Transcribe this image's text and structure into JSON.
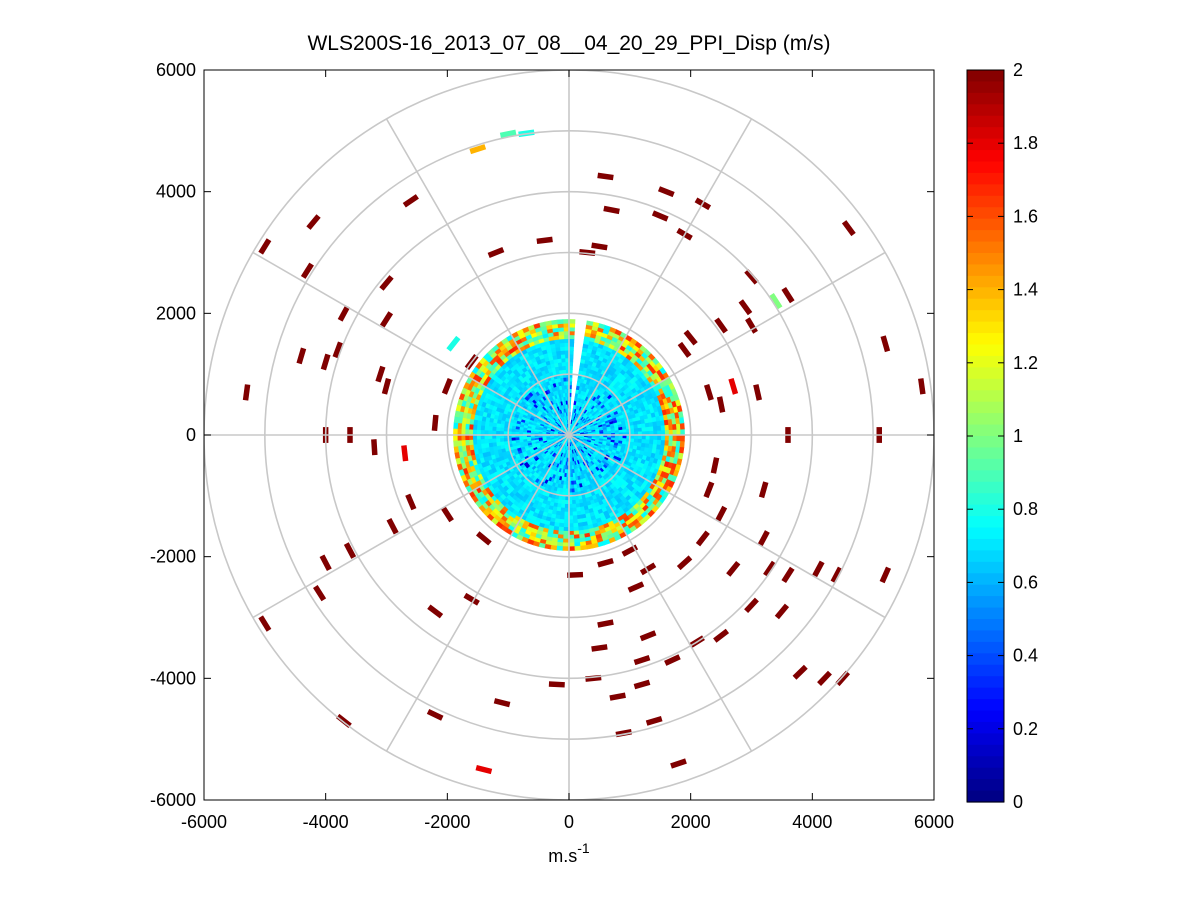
{
  "chart_data": {
    "type": "heatmap",
    "subtype": "ppi-polar-scan",
    "title": "WLS200S-16_2013_07_08__04_20_29_PPI_Disp (m/s)",
    "xlabel": "m.s",
    "xlabel_superscript": "-1",
    "ylabel": "",
    "xlim": [
      -6000,
      6000
    ],
    "ylim": [
      -6000,
      6000
    ],
    "x_ticks": [
      "-6000",
      "-4000",
      "-2000",
      "0",
      "2000",
      "4000",
      "6000"
    ],
    "y_ticks": [
      "6000",
      "4000",
      "2000",
      "0",
      "-2000",
      "-4000",
      "-6000"
    ],
    "polar_grid": {
      "ring_radii": [
        1000,
        2000,
        3000,
        4000,
        5000,
        6000
      ],
      "spoke_angles_deg": [
        0,
        30,
        60,
        90,
        120,
        150,
        180,
        210,
        240,
        270,
        300,
        330
      ]
    },
    "colorbar": {
      "range": [
        0,
        2
      ],
      "colormap": "jet",
      "tick_labels": [
        "2",
        "1.8",
        "1.6",
        "1.4",
        "1.2",
        "1",
        "0.8",
        "0.6",
        "0.4",
        "0.2",
        "0"
      ]
    },
    "central_region": {
      "radius": 1900,
      "typical_value": 0.7,
      "edge_value": 1.2,
      "gap_azimuth_deg": [
        80,
        88
      ]
    },
    "scattered_cells": [
      {
        "x": -1000,
        "y": 4950,
        "v": 0.9
      },
      {
        "x": -700,
        "y": 4960,
        "v": 0.8
      },
      {
        "x": -1500,
        "y": 4700,
        "v": 1.4
      },
      {
        "x": 600,
        "y": 4250,
        "v": 2
      },
      {
        "x": 1600,
        "y": 4000,
        "v": 2
      },
      {
        "x": 2200,
        "y": 3800,
        "v": 2
      },
      {
        "x": 4600,
        "y": 3400,
        "v": 2
      },
      {
        "x": -4200,
        "y": 3500,
        "v": 2
      },
      {
        "x": -2600,
        "y": 3850,
        "v": 2
      },
      {
        "x": -5000,
        "y": 3100,
        "v": 2
      },
      {
        "x": -4300,
        "y": 2700,
        "v": 2
      },
      {
        "x": -3000,
        "y": 2500,
        "v": 2
      },
      {
        "x": -3700,
        "y": 2000,
        "v": 2
      },
      {
        "x": -3000,
        "y": 1900,
        "v": 2
      },
      {
        "x": -4400,
        "y": 1300,
        "v": 2
      },
      {
        "x": -4000,
        "y": 1200,
        "v": 2
      },
      {
        "x": -3800,
        "y": 1400,
        "v": 2
      },
      {
        "x": -3100,
        "y": 1000,
        "v": 2
      },
      {
        "x": -3000,
        "y": 800,
        "v": 2
      },
      {
        "x": -5300,
        "y": 700,
        "v": 2
      },
      {
        "x": -4000,
        "y": 0,
        "v": 2
      },
      {
        "x": -3600,
        "y": 0,
        "v": 2
      },
      {
        "x": -3200,
        "y": -200,
        "v": 2
      },
      {
        "x": -2700,
        "y": -300,
        "v": 1.8
      },
      {
        "x": -2000,
        "y": 800,
        "v": 2
      },
      {
        "x": -2200,
        "y": 200,
        "v": 2
      },
      {
        "x": 300,
        "y": 3000,
        "v": 2
      },
      {
        "x": 500,
        "y": 3100,
        "v": 2
      },
      {
        "x": 700,
        "y": 3700,
        "v": 2
      },
      {
        "x": 1500,
        "y": 3600,
        "v": 2
      },
      {
        "x": 1900,
        "y": 3300,
        "v": 2
      },
      {
        "x": 3000,
        "y": 2600,
        "v": 2
      },
      {
        "x": 3600,
        "y": 2300,
        "v": 2
      },
      {
        "x": 3400,
        "y": 2200,
        "v": 1
      },
      {
        "x": 2900,
        "y": 2100,
        "v": 2
      },
      {
        "x": 3000,
        "y": 1800,
        "v": 2
      },
      {
        "x": 2500,
        "y": 1800,
        "v": 2
      },
      {
        "x": 2000,
        "y": 1600,
        "v": 2
      },
      {
        "x": 1900,
        "y": 1400,
        "v": 2
      },
      {
        "x": 2300,
        "y": 700,
        "v": 2
      },
      {
        "x": 2700,
        "y": 800,
        "v": 1.8
      },
      {
        "x": 2500,
        "y": 500,
        "v": 2
      },
      {
        "x": 3100,
        "y": 700,
        "v": 2
      },
      {
        "x": 5200,
        "y": 1500,
        "v": 2
      },
      {
        "x": 5800,
        "y": 800,
        "v": 2
      },
      {
        "x": 5100,
        "y": 0,
        "v": 2
      },
      {
        "x": 3600,
        "y": 0,
        "v": 2
      },
      {
        "x": 3200,
        "y": -900,
        "v": 2
      },
      {
        "x": 2500,
        "y": -1300,
        "v": 2
      },
      {
        "x": 2200,
        "y": -1700,
        "v": 2
      },
      {
        "x": 3200,
        "y": -1700,
        "v": 2
      },
      {
        "x": 2700,
        "y": -2200,
        "v": 2
      },
      {
        "x": 3300,
        "y": -2200,
        "v": 2
      },
      {
        "x": 3600,
        "y": -2300,
        "v": 2
      },
      {
        "x": 4100,
        "y": -2200,
        "v": 2
      },
      {
        "x": 4400,
        "y": -2300,
        "v": 2
      },
      {
        "x": 5200,
        "y": -2300,
        "v": 2
      },
      {
        "x": 3000,
        "y": -2800,
        "v": 2
      },
      {
        "x": 3500,
        "y": -2900,
        "v": 2
      },
      {
        "x": 2500,
        "y": -3300,
        "v": 2
      },
      {
        "x": 2100,
        "y": -3400,
        "v": 2
      },
      {
        "x": 1300,
        "y": -3300,
        "v": 2
      },
      {
        "x": 1200,
        "y": -3700,
        "v": 2
      },
      {
        "x": 1700,
        "y": -3700,
        "v": 2
      },
      {
        "x": 3800,
        "y": -3900,
        "v": 2
      },
      {
        "x": 4200,
        "y": -4000,
        "v": 2
      },
      {
        "x": 4500,
        "y": -4000,
        "v": 2
      },
      {
        "x": 1200,
        "y": -4100,
        "v": 2
      },
      {
        "x": 800,
        "y": -4300,
        "v": 2
      },
      {
        "x": 400,
        "y": -4000,
        "v": 2
      },
      {
        "x": -200,
        "y": -4100,
        "v": 2
      },
      {
        "x": -1100,
        "y": -4400,
        "v": 2
      },
      {
        "x": 1400,
        "y": -4700,
        "v": 2
      },
      {
        "x": 900,
        "y": -4900,
        "v": 2
      },
      {
        "x": 1800,
        "y": -5400,
        "v": 2
      },
      {
        "x": -1400,
        "y": -5500,
        "v": 1.8
      },
      {
        "x": -2200,
        "y": -4600,
        "v": 2
      },
      {
        "x": -3700,
        "y": -4700,
        "v": 2
      },
      {
        "x": -5000,
        "y": -3100,
        "v": 2
      },
      {
        "x": -4100,
        "y": -2600,
        "v": 2
      },
      {
        "x": -4000,
        "y": -2100,
        "v": 2
      },
      {
        "x": -3600,
        "y": -1900,
        "v": 2
      },
      {
        "x": -2200,
        "y": -2900,
        "v": 2
      },
      {
        "x": -1600,
        "y": -2700,
        "v": 2
      },
      {
        "x": -2900,
        "y": -1500,
        "v": 2
      },
      {
        "x": -2000,
        "y": -1300,
        "v": 2
      },
      {
        "x": -1400,
        "y": -1700,
        "v": 2
      },
      {
        "x": 600,
        "y": -3100,
        "v": 2
      },
      {
        "x": 500,
        "y": -3500,
        "v": 2
      },
      {
        "x": 1100,
        "y": -2500,
        "v": 2
      },
      {
        "x": 1300,
        "y": -2200,
        "v": 2
      },
      {
        "x": 1900,
        "y": -2100,
        "v": 2
      },
      {
        "x": 100,
        "y": -2300,
        "v": 2
      },
      {
        "x": 600,
        "y": -2100,
        "v": 2
      },
      {
        "x": 1000,
        "y": -1900,
        "v": 2
      },
      {
        "x": -1200,
        "y": 3000,
        "v": 2
      },
      {
        "x": -400,
        "y": 3200,
        "v": 2
      },
      {
        "x": -1600,
        "y": 1200,
        "v": 2
      },
      {
        "x": -1900,
        "y": 1500,
        "v": 0.8
      },
      {
        "x": 2400,
        "y": -500,
        "v": 2
      },
      {
        "x": 2300,
        "y": -900,
        "v": 2
      },
      {
        "x": -2600,
        "y": -1100,
        "v": 2
      }
    ]
  }
}
